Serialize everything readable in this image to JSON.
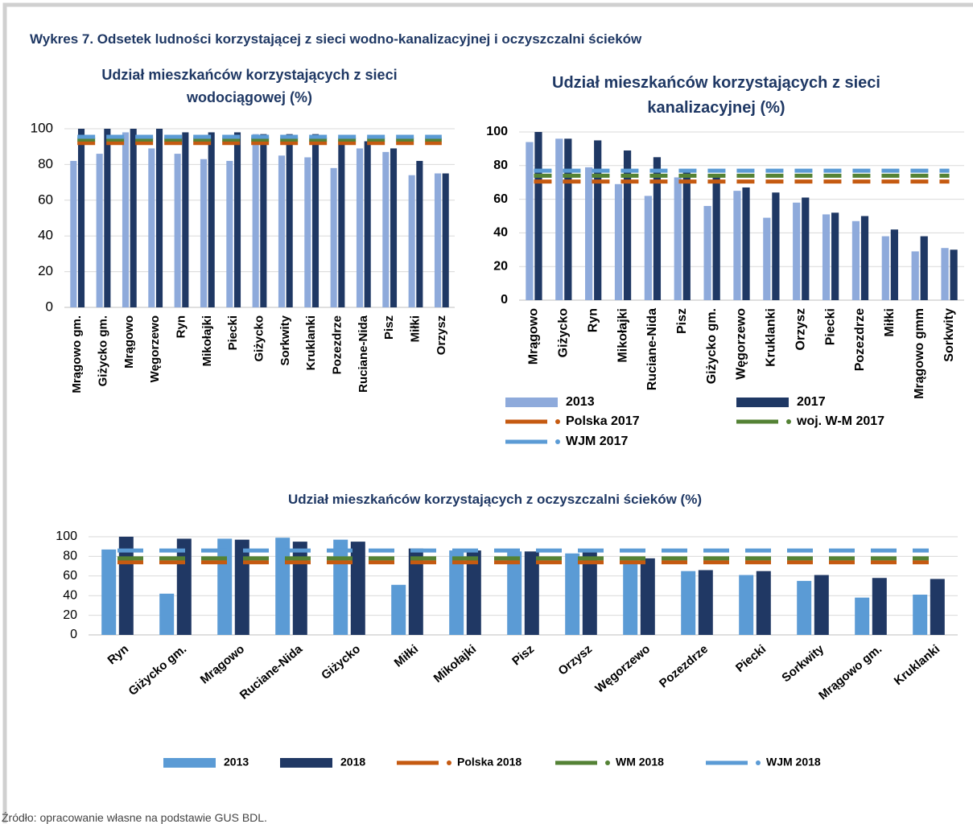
{
  "header": {
    "title": "Wykres 7. Odsetek ludności korzystającej z sieci wodno-kanalizacyjnej i oczyszczalni ścieków"
  },
  "chart_data": [
    {
      "type": "bar",
      "title": "Udział mieszkańców korzystających z sieci wodociągowej (%)",
      "categories": [
        "Mrągowo gm.",
        "Giżycko gm.",
        "Mrągowo",
        "Węgorzewo",
        "Ryn",
        "Mikołajki",
        "Piecki",
        "Giżycko",
        "Sorkwity",
        "Kruklanki",
        "Pozezdrze",
        "Ruciane-Nida",
        "Pisz",
        "Miłki",
        "Orzysz"
      ],
      "series": [
        {
          "name": "2013",
          "color": "#8eaadb",
          "values": [
            82,
            86,
            98,
            89,
            86,
            83,
            82,
            97,
            85,
            84,
            78,
            89,
            87,
            74,
            75
          ]
        },
        {
          "name": "2017",
          "color": "#1f3864",
          "values": [
            100,
            100,
            100,
            100,
            98,
            98,
            98,
            97,
            97,
            97,
            94,
            93,
            89,
            82,
            75
          ]
        },
        {
          "name": "Polska 2017",
          "color": "#c55a11",
          "type": "line",
          "values": [
            92,
            92,
            92,
            92,
            92,
            92,
            92,
            92,
            92,
            92,
            92,
            92,
            92,
            92,
            92
          ]
        },
        {
          "name": "woj. W-M 2017",
          "color": "#548235",
          "type": "line",
          "values": [
            94,
            94,
            94,
            94,
            94,
            94,
            94,
            94,
            94,
            94,
            94,
            94,
            94,
            94,
            94
          ]
        },
        {
          "name": "WJM 2017",
          "color": "#5b9bd5",
          "type": "line",
          "values": [
            95.5,
            95.5,
            95.5,
            95.5,
            95.5,
            95.5,
            95.5,
            95.5,
            95.5,
            95.5,
            95.5,
            95.5,
            95.5,
            95.5,
            95.5
          ]
        }
      ],
      "ylim": [
        0,
        100
      ],
      "yticks": [
        0,
        20,
        40,
        60,
        80,
        100
      ],
      "grid": true
    },
    {
      "type": "bar",
      "title": "Udział mieszkańców korzystających z sieci kanalizacyjnej (%)",
      "categories": [
        "Mrągowo",
        "Giżycko",
        "Ryn",
        "Mikołajki",
        "Ruciane-Nida",
        "Pisz",
        "Giżycko gm.",
        "Węgorzewo",
        "Kruklanki",
        "Orzysz",
        "Piecki",
        "Pozezdrze",
        "Miłki",
        "Mrągowo gmm",
        "Sorkwity"
      ],
      "series": [
        {
          "name": "2013",
          "color": "#8eaadb",
          "values": [
            94,
            96,
            79,
            69,
            62,
            73,
            56,
            65,
            49,
            58,
            51,
            47,
            38,
            29,
            31
          ]
        },
        {
          "name": "2017",
          "color": "#1f3864",
          "values": [
            100,
            96,
            95,
            89,
            85,
            76,
            73,
            67,
            64,
            61,
            52,
            50,
            42,
            38,
            30
          ]
        },
        {
          "name": "Polska 2017",
          "color": "#c55a11",
          "type": "line",
          "values": [
            70.5,
            70.5,
            70.5,
            70.5,
            70.5,
            70.5,
            70.5,
            70.5,
            70.5,
            70.5,
            70.5,
            70.5,
            70.5,
            70.5,
            70.5
          ]
        },
        {
          "name": "woj. W-M 2017",
          "color": "#548235",
          "type": "line",
          "values": [
            74,
            74,
            74,
            74,
            74,
            74,
            74,
            74,
            74,
            74,
            74,
            74,
            74,
            74,
            74
          ]
        },
        {
          "name": "WJM 2017",
          "color": "#5b9bd5",
          "type": "line",
          "values": [
            77,
            77,
            77,
            77,
            77,
            77,
            77,
            77,
            77,
            77,
            77,
            77,
            77,
            77,
            77
          ]
        }
      ],
      "ylim": [
        0,
        100
      ],
      "yticks": [
        0,
        20,
        40,
        60,
        80,
        100
      ],
      "grid": true
    },
    {
      "type": "bar",
      "title": "Udział mieszkańców korzystających z oczyszczalni ścieków (%)",
      "categories": [
        "Ryn",
        "Giżycko gm.",
        "Mrągowo",
        "Ruciane-Nida",
        "Giżycko",
        "Miłki",
        "Mikołajki",
        "Pisz",
        "Orzysz",
        "Węgorzewo",
        "Pozezdrze",
        "Piecki",
        "Sorkwity",
        "Mrągowo gm.",
        "Kruklanki"
      ],
      "series": [
        {
          "name": "2013",
          "color": "#5b9bd5",
          "values": [
            87,
            42,
            98,
            99,
            97,
            51,
            86,
            85,
            83,
            76,
            65,
            61,
            55,
            38,
            41
          ]
        },
        {
          "name": "2018",
          "color": "#203864",
          "values": [
            100,
            98,
            97,
            95,
            95,
            88,
            86,
            85,
            84,
            78,
            66,
            65,
            61,
            58,
            57
          ]
        },
        {
          "name": "Polska 2018",
          "color": "#c55a11",
          "type": "line",
          "values": [
            74,
            74,
            74,
            74,
            74,
            74,
            74,
            74,
            74,
            74,
            74,
            74,
            74,
            74,
            74
          ]
        },
        {
          "name": "WM 2018",
          "color": "#548235",
          "type": "line",
          "values": [
            78,
            78,
            78,
            78,
            78,
            78,
            78,
            78,
            78,
            78,
            78,
            78,
            78,
            78,
            78
          ]
        },
        {
          "name": "WJM 2018",
          "color": "#5b9bd5",
          "type": "line",
          "values": [
            86,
            86,
            86,
            86,
            86,
            86,
            86,
            86,
            86,
            86,
            86,
            86,
            86,
            86,
            86
          ]
        }
      ],
      "ylim": [
        0,
        100
      ],
      "yticks": [
        0,
        20,
        40,
        60,
        80,
        100
      ],
      "grid": true
    }
  ],
  "footer": {
    "source": "Źródło: opracowanie własne na podstawie GUS BDL."
  }
}
